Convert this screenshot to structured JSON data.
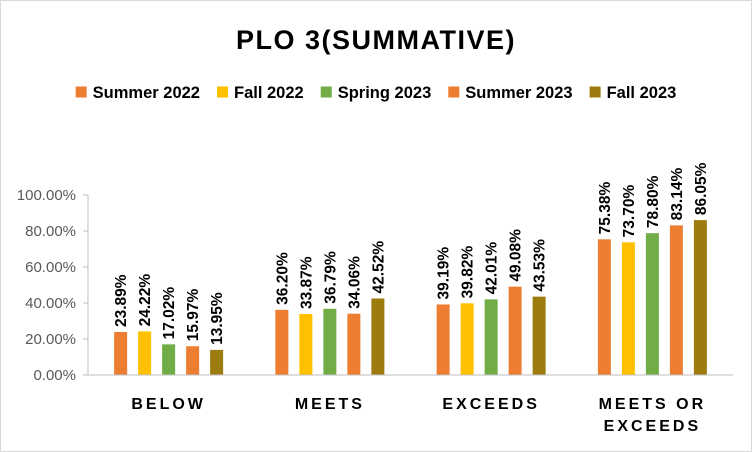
{
  "chart_data": {
    "type": "bar",
    "title": "PLO 3(SUMMATIVE)",
    "categories": [
      [
        "BELOW"
      ],
      [
        "MEETS"
      ],
      [
        "EXCEEDS"
      ],
      [
        "MEETS OR",
        "EXCEEDS"
      ]
    ],
    "series": [
      {
        "name": "Summer 2022",
        "color": "#ed7d31",
        "values": [
          23.89,
          36.2,
          39.19,
          75.38
        ],
        "labels": [
          "23.89%",
          "36.20%",
          "39.19%",
          "75.38%"
        ]
      },
      {
        "name": "Fall 2022",
        "color": "#ffc000",
        "values": [
          24.22,
          33.87,
          39.82,
          73.7
        ],
        "labels": [
          "24.22%",
          "33.87%",
          "39.82%",
          "73.70%"
        ]
      },
      {
        "name": "Spring 2023",
        "color": "#70ad47",
        "values": [
          17.02,
          36.79,
          42.01,
          78.8
        ],
        "labels": [
          "17.02%",
          "36.79%",
          "42.01%",
          "78.80%"
        ]
      },
      {
        "name": "Summer 2023",
        "color": "#ed7d31",
        "values": [
          15.97,
          34.06,
          49.08,
          83.14
        ],
        "labels": [
          "15.97%",
          "34.06%",
          "49.08%",
          "83.14%"
        ]
      },
      {
        "name": "Fall 2023",
        "color": "#9c7b0f",
        "values": [
          13.95,
          42.52,
          43.53,
          86.05
        ],
        "labels": [
          "13.95%",
          "42.52%",
          "43.53%",
          "86.05%"
        ]
      }
    ],
    "yticks": [
      "0.00%",
      "20.00%",
      "40.00%",
      "60.00%",
      "80.00%",
      "100.00%"
    ],
    "ylim": [
      0,
      100
    ],
    "legend_position": "top",
    "grid": false,
    "data_labels": true
  }
}
